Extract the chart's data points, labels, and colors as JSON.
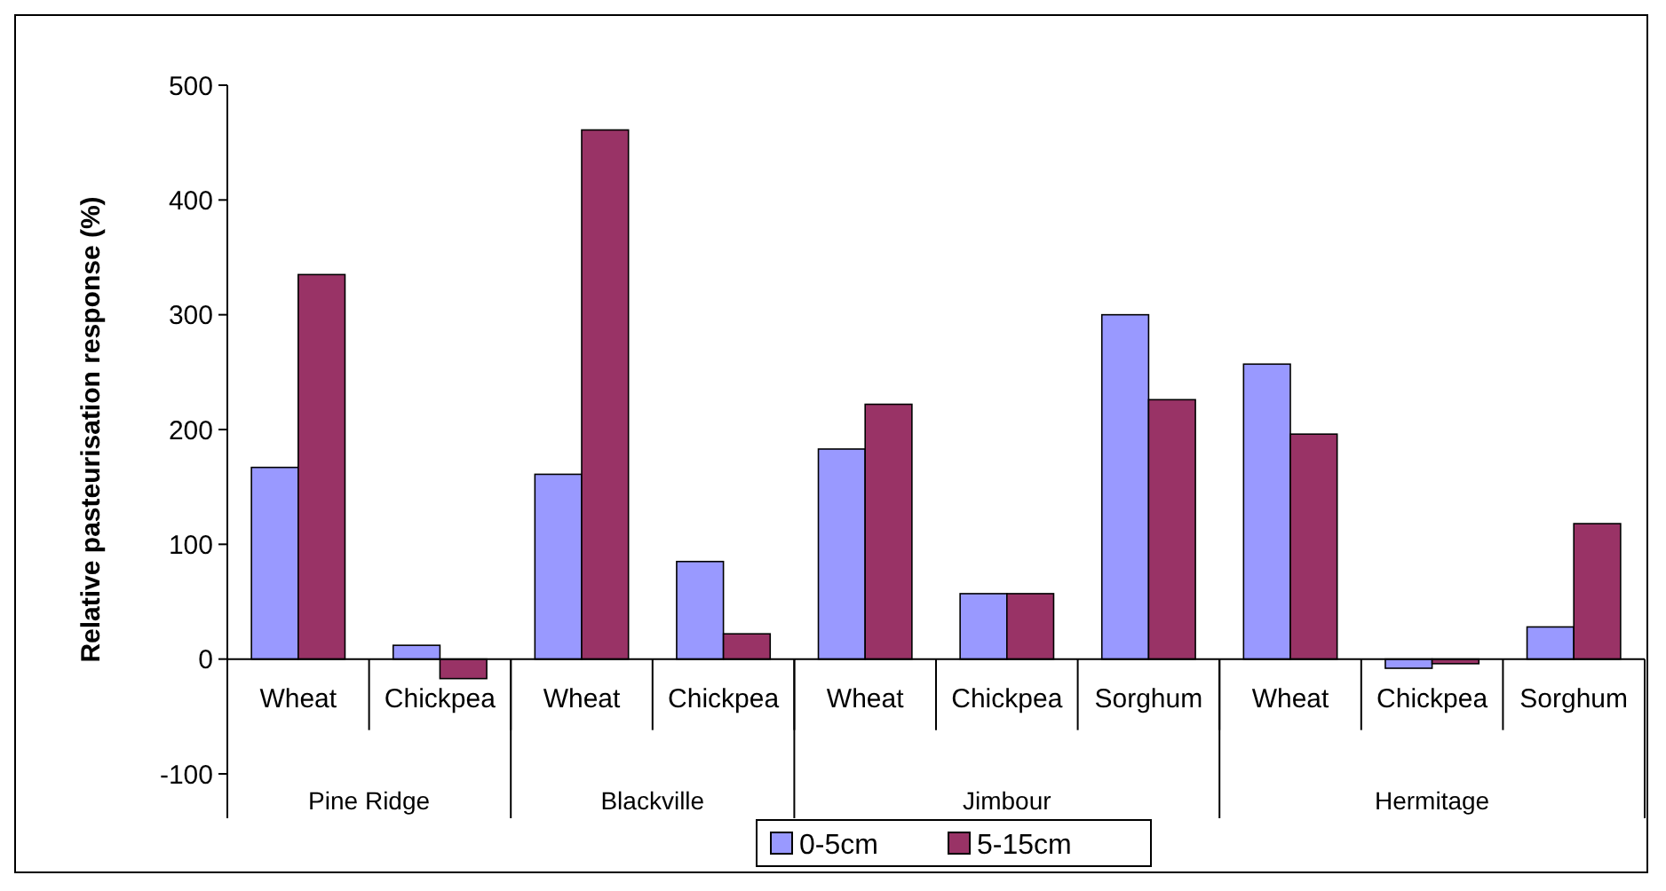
{
  "chart_data": {
    "type": "bar",
    "ylabel": "Relative pasteurisation response (%)",
    "categories": [
      "Wheat",
      "Chickpea",
      "Wheat",
      "Chickpea",
      "Wheat",
      "Chickpea",
      "Sorghum",
      "Wheat",
      "Chickpea",
      "Sorghum"
    ],
    "series": [
      {
        "name": "0-5cm",
        "color": "#9999ff",
        "values": [
          167,
          12,
          161,
          85,
          183,
          57,
          300,
          257,
          -8,
          28
        ]
      },
      {
        "name": "5-15cm",
        "color": "#993366",
        "values": [
          335,
          -17,
          461,
          22,
          222,
          57,
          226,
          196,
          -4,
          118
        ]
      }
    ],
    "annotations": [
      "Pine Ridge",
      "Blackville",
      "Jimbour",
      "Hermitage"
    ],
    "ylim": [
      -100,
      500
    ],
    "yticks": [
      -100,
      0,
      100,
      200,
      300,
      400,
      500
    ],
    "grid": false,
    "legend": "bottom"
  }
}
